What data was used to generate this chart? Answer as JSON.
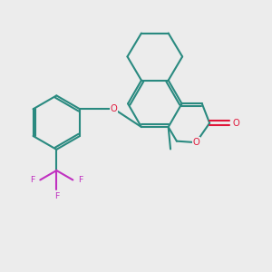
{
  "bg_color": "#ececec",
  "bond_color": "#2a8a80",
  "heteroatom_color": "#e0173a",
  "fluorine_color": "#c030c0",
  "line_width": 1.5,
  "figsize": [
    3.0,
    3.0
  ],
  "dpi": 100,
  "xlim": [
    0,
    10
  ],
  "ylim": [
    0,
    10
  ]
}
